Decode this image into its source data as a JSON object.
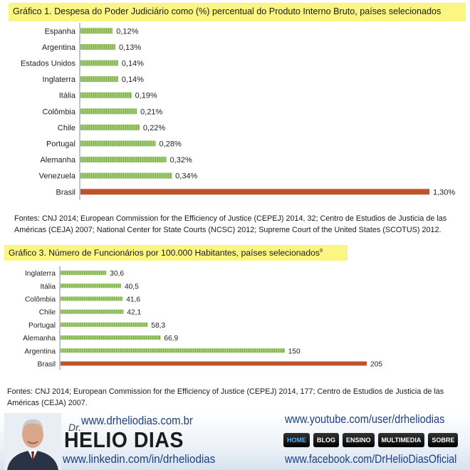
{
  "chart_data": [
    {
      "type": "bar",
      "orientation": "horizontal",
      "title": "Gráfico 1. Despesa do Poder Judiciário como (%) percentual do Produto Interno Bruto, países selecionados",
      "categories": [
        "Espanha",
        "Argentina",
        "Estados Unidos",
        "Inglaterra",
        "Itália",
        "Colômbia",
        "Chile",
        "Portugal",
        "Alemanha",
        "Venezuela",
        "Brasil"
      ],
      "values": [
        0.12,
        0.13,
        0.14,
        0.14,
        0.19,
        0.21,
        0.22,
        0.28,
        0.32,
        0.34,
        1.3
      ],
      "value_labels": [
        "0,12%",
        "0,13%",
        "0,14%",
        "0,14%",
        "0,19%",
        "0,21%",
        "0,22%",
        "0,28%",
        "0,32%",
        "0,34%",
        "1,30%"
      ],
      "highlight_category": "Brasil",
      "colors": {
        "bar": "#7cb342",
        "highlight": "#c0522c"
      },
      "grid": false,
      "source": "Fontes: CNJ 2014; European Commission for the Efficiency of Justice (CEPEJ) 2014, 32; Centro de Estudios de Justicia de las Américas (CEJA) 2007; National Center for State Courts (NCSC) 2012; Supreme Court of the United States (SCOTUS) 2012."
    },
    {
      "type": "bar",
      "orientation": "horizontal",
      "title": "Gráfico 3. Número de Funcionários por 100.000 Habitantes, países selecionados",
      "title_footnote": "9",
      "categories": [
        "Inglaterra",
        "Itália",
        "Colômbia",
        "Chile",
        "Portugal",
        "Alemanha",
        "Argentina",
        "Brasil"
      ],
      "values": [
        30.6,
        40.5,
        41.6,
        42.1,
        58.3,
        66.9,
        150,
        205
      ],
      "value_labels": [
        "30,6",
        "40,5",
        "41,6",
        "42,1",
        "58,3",
        "66,9",
        "150",
        "205"
      ],
      "highlight_category": "Brasil",
      "colors": {
        "bar": "#7cb342",
        "highlight": "#c0522c"
      },
      "grid": false,
      "source": "Fontes: CNJ 2014; European Commission for the Efficiency of Justice (CEPEJ) 2014, 177; Centro de Estudios de Justicia de las Américas (CEJA) 2007."
    }
  ],
  "banner": {
    "dr": "Dr.",
    "name": "HELIO DIAS",
    "website": "www.drheliodias.com.br",
    "linkedin": "www.linkedin.com/in/drheliodias",
    "youtube": "www.youtube.com/user/drheliodias",
    "facebook": "www.facebook.com/DrHelioDiasOficial",
    "nav": [
      "HOME",
      "BLOG",
      "ENSINO",
      "MULTIMEDIA",
      "SOBRE"
    ]
  }
}
